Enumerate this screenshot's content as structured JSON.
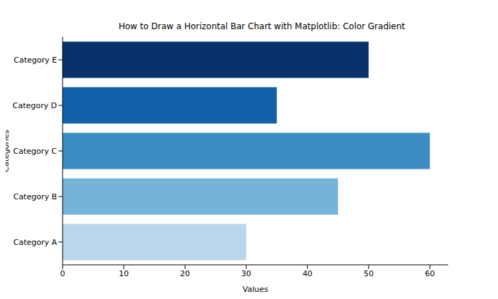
{
  "chart_data": {
    "type": "bar",
    "title": "How to Draw a Horizontal Bar Chart with Matplotlib: Color Gradient",
    "x_label": "Values",
    "y_label": "Categories",
    "orientation": "horizontal",
    "categories": [
      "Category A",
      "Category B",
      "Category C",
      "Category D",
      "Category E"
    ],
    "values": [
      30,
      45,
      60,
      35,
      50
    ],
    "colors": [
      "#b9d6eb",
      "#75b3d8",
      "#3d8bc3",
      "#1461a9",
      "#08306b"
    ],
    "xlim": [
      0,
      63
    ],
    "xticks": [
      0,
      10,
      20,
      30,
      40,
      50,
      60
    ]
  }
}
